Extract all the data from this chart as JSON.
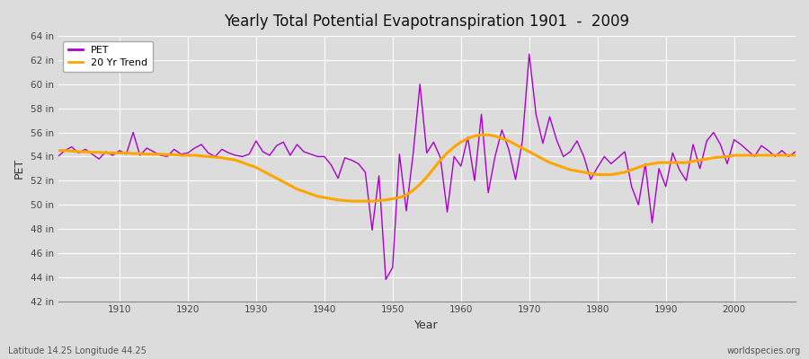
{
  "title": "Yearly Total Potential Evapotranspiration 1901  -  2009",
  "ylabel": "PET",
  "xlabel": "Year",
  "bottom_left": "Latitude 14.25 Longitude 44.25",
  "bottom_right": "worldspecies.org",
  "pet_color": "#aa00cc",
  "trend_color": "#FFA500",
  "bg_color": "#dcdcdc",
  "ylim": [
    42,
    64
  ],
  "yticks": [
    42,
    44,
    46,
    48,
    50,
    52,
    54,
    56,
    58,
    60,
    62,
    64
  ],
  "ytick_labels": [
    "42 in",
    "44 in",
    "46 in",
    "48 in",
    "50 in",
    "52 in",
    "54 in",
    "56 in",
    "58 in",
    "60 in",
    "62 in",
    "64 in"
  ],
  "xlim": [
    1901,
    2009
  ],
  "xticks": [
    1910,
    1920,
    1930,
    1940,
    1950,
    1960,
    1970,
    1980,
    1990,
    2000
  ],
  "years": [
    1901,
    1902,
    1903,
    1904,
    1905,
    1906,
    1907,
    1908,
    1909,
    1910,
    1911,
    1912,
    1913,
    1914,
    1915,
    1916,
    1917,
    1918,
    1919,
    1920,
    1921,
    1922,
    1923,
    1924,
    1925,
    1926,
    1927,
    1928,
    1929,
    1930,
    1931,
    1932,
    1933,
    1934,
    1935,
    1936,
    1937,
    1938,
    1939,
    1940,
    1941,
    1942,
    1943,
    1944,
    1945,
    1946,
    1947,
    1948,
    1949,
    1950,
    1951,
    1952,
    1953,
    1954,
    1955,
    1956,
    1957,
    1958,
    1959,
    1960,
    1961,
    1962,
    1963,
    1964,
    1965,
    1966,
    1967,
    1968,
    1969,
    1970,
    1971,
    1972,
    1973,
    1974,
    1975,
    1976,
    1977,
    1978,
    1979,
    1980,
    1981,
    1982,
    1983,
    1984,
    1985,
    1986,
    1987,
    1988,
    1989,
    1990,
    1991,
    1992,
    1993,
    1994,
    1995,
    1996,
    1997,
    1998,
    1999,
    2000,
    2001,
    2002,
    2003,
    2004,
    2005,
    2006,
    2007,
    2008,
    2009
  ],
  "pet_values": [
    54.0,
    54.5,
    54.8,
    54.3,
    54.6,
    54.2,
    53.8,
    54.4,
    54.1,
    54.5,
    54.2,
    56.0,
    54.1,
    54.7,
    54.4,
    54.1,
    54.0,
    54.6,
    54.2,
    54.3,
    54.7,
    55.0,
    54.3,
    54.0,
    54.6,
    54.3,
    54.1,
    54.0,
    54.2,
    55.3,
    54.4,
    54.1,
    54.9,
    55.2,
    54.1,
    55.0,
    54.4,
    54.2,
    54.0,
    54.0,
    53.3,
    52.2,
    53.9,
    53.7,
    53.4,
    52.7,
    47.9,
    52.4,
    43.8,
    44.8,
    54.2,
    49.5,
    54.2,
    60.0,
    54.3,
    55.2,
    53.9,
    49.4,
    54.0,
    53.2,
    55.6,
    52.0,
    57.5,
    51.0,
    54.0,
    56.2,
    54.6,
    52.1,
    55.3,
    62.5,
    57.5,
    55.1,
    57.3,
    55.4,
    54.0,
    54.4,
    55.3,
    54.0,
    52.1,
    53.1,
    54.0,
    53.4,
    53.9,
    54.4,
    51.5,
    50.0,
    53.4,
    48.5,
    53.0,
    51.5,
    54.3,
    52.9,
    52.0,
    55.0,
    53.0,
    55.3,
    56.0,
    55.0,
    53.4,
    55.4,
    55.0,
    54.5,
    54.0,
    54.9,
    54.5,
    54.0,
    54.5,
    54.0,
    54.4
  ],
  "trend_years": [
    1901,
    1902,
    1903,
    1904,
    1905,
    1906,
    1907,
    1908,
    1909,
    1910,
    1911,
    1912,
    1913,
    1914,
    1915,
    1916,
    1917,
    1918,
    1919,
    1920,
    1921,
    1922,
    1923,
    1924,
    1925,
    1926,
    1927,
    1928,
    1929,
    1930,
    1931,
    1932,
    1933,
    1934,
    1935,
    1936,
    1937,
    1938,
    1939,
    1940,
    1941,
    1942,
    1943,
    1944,
    1945,
    1946,
    1947,
    1948,
    1949,
    1950,
    1951,
    1952,
    1953,
    1954,
    1955,
    1956,
    1957,
    1958,
    1959,
    1960,
    1961,
    1962,
    1963,
    1964,
    1965,
    1966,
    1967,
    1968,
    1969,
    1970,
    1971,
    1972,
    1973,
    1974,
    1975,
    1976,
    1977,
    1978,
    1979,
    1980,
    1981,
    1982,
    1983,
    1984,
    1985,
    1986,
    1987,
    1988,
    1989,
    1990,
    1991,
    1992,
    1993,
    1994,
    1995,
    1996,
    1997,
    1998,
    1999,
    2000,
    2001,
    2002,
    2003,
    2004,
    2005,
    2006,
    2007,
    2008,
    2009
  ],
  "trend_values": [
    54.5,
    54.5,
    54.45,
    54.4,
    54.4,
    54.35,
    54.35,
    54.3,
    54.3,
    54.3,
    54.3,
    54.25,
    54.25,
    54.2,
    54.2,
    54.2,
    54.15,
    54.15,
    54.1,
    54.1,
    54.1,
    54.05,
    54.0,
    53.95,
    53.9,
    53.8,
    53.7,
    53.5,
    53.3,
    53.1,
    52.8,
    52.5,
    52.2,
    51.9,
    51.6,
    51.3,
    51.1,
    50.9,
    50.7,
    50.6,
    50.5,
    50.4,
    50.35,
    50.3,
    50.3,
    50.3,
    50.3,
    50.35,
    50.4,
    50.5,
    50.6,
    50.8,
    51.2,
    51.7,
    52.3,
    53.0,
    53.7,
    54.3,
    54.8,
    55.2,
    55.5,
    55.7,
    55.8,
    55.8,
    55.7,
    55.5,
    55.3,
    55.0,
    54.7,
    54.4,
    54.1,
    53.8,
    53.5,
    53.3,
    53.1,
    52.9,
    52.8,
    52.7,
    52.6,
    52.5,
    52.5,
    52.5,
    52.6,
    52.7,
    52.9,
    53.1,
    53.3,
    53.4,
    53.5,
    53.5,
    53.5,
    53.5,
    53.5,
    53.6,
    53.7,
    53.8,
    53.9,
    53.95,
    54.0,
    54.1,
    54.1,
    54.1,
    54.1,
    54.1,
    54.1,
    54.1,
    54.1,
    54.1,
    54.1
  ]
}
